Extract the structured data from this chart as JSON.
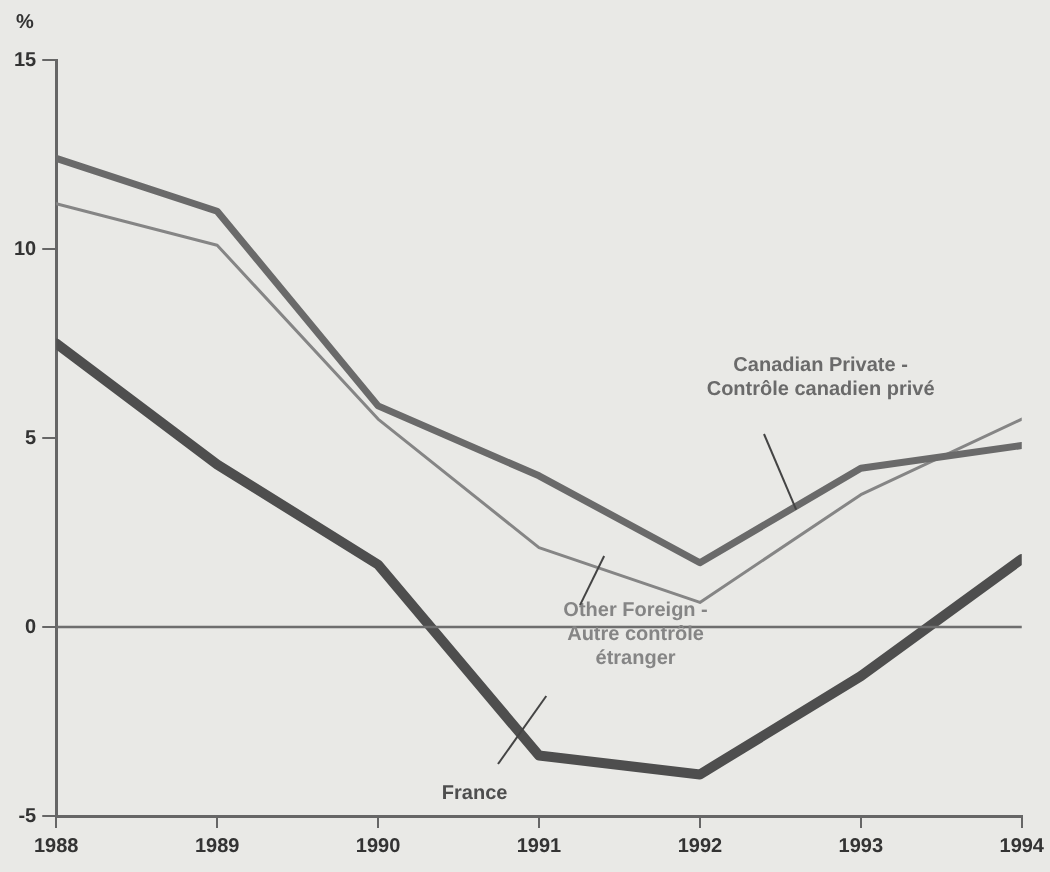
{
  "chart_data": {
    "type": "line",
    "ylabel": "%",
    "x": [
      1988,
      1989,
      1990,
      1991,
      1992,
      1993,
      1994
    ],
    "xlim": [
      1988,
      1994
    ],
    "xticks": [
      1988,
      1989,
      1990,
      1991,
      1992,
      1993,
      1994
    ],
    "ylim": [
      -5,
      15
    ],
    "yticks": [
      -5,
      0,
      5,
      10,
      15
    ],
    "grid": false,
    "legend": false,
    "marker": "none",
    "ref_lines": [
      {
        "axis": "y",
        "value": 0,
        "color": "#6e6e6e"
      }
    ],
    "series": [
      {
        "name": "Canadian Private -\nContrôle canadien privé",
        "color": "#6a6a6a",
        "values": [
          12.4,
          11.0,
          5.85,
          4.0,
          1.7,
          4.2,
          4.8
        ]
      },
      {
        "name": "Other Foreign -\nAutre contrôle\nétranger",
        "color": "#858585",
        "values": [
          11.2,
          10.1,
          5.5,
          2.1,
          0.65,
          3.5,
          5.5
        ]
      },
      {
        "name": "France",
        "color": "#4e4e4e",
        "values": [
          7.5,
          4.3,
          1.65,
          -3.4,
          -3.9,
          -1.3,
          1.8
        ]
      }
    ]
  }
}
